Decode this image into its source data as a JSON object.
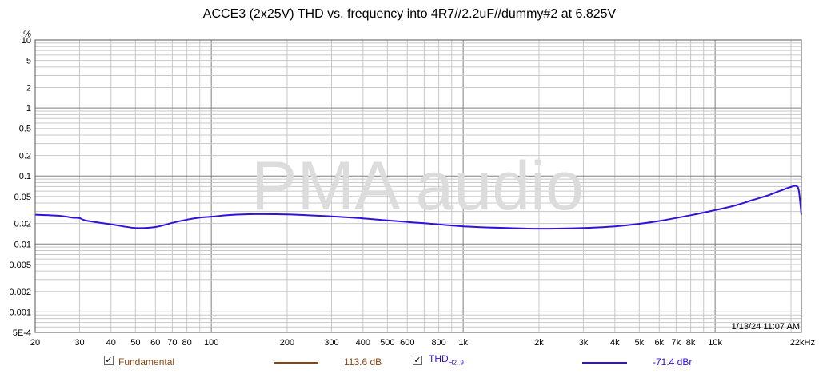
{
  "chart_data": {
    "type": "line",
    "title": "ACCE3 (2x25V) THD vs. frequency into 4R7//2.2uF//dummy#2 at 6.825V",
    "ylabel": "%",
    "xlabel": "",
    "x_scale": "log",
    "y_scale": "log",
    "xlim": [
      20,
      22000
    ],
    "ylim": [
      0.0005,
      10
    ],
    "x_ticks": [
      {
        "v": 20,
        "label": "20"
      },
      {
        "v": 30,
        "label": "30"
      },
      {
        "v": 40,
        "label": "40"
      },
      {
        "v": 50,
        "label": "50"
      },
      {
        "v": 60,
        "label": "60"
      },
      {
        "v": 70,
        "label": "70"
      },
      {
        "v": 80,
        "label": "80"
      },
      {
        "v": 100,
        "label": "100"
      },
      {
        "v": 200,
        "label": "200"
      },
      {
        "v": 300,
        "label": "300"
      },
      {
        "v": 400,
        "label": "400"
      },
      {
        "v": 500,
        "label": "500"
      },
      {
        "v": 600,
        "label": "600"
      },
      {
        "v": 800,
        "label": "800"
      },
      {
        "v": 1000,
        "label": "1k"
      },
      {
        "v": 2000,
        "label": "2k"
      },
      {
        "v": 3000,
        "label": "3k"
      },
      {
        "v": 4000,
        "label": "4k"
      },
      {
        "v": 5000,
        "label": "5k"
      },
      {
        "v": 6000,
        "label": "6k"
      },
      {
        "v": 7000,
        "label": "7k"
      },
      {
        "v": 8000,
        "label": "8k"
      },
      {
        "v": 10000,
        "label": "10k"
      },
      {
        "v": 22000,
        "label": "22kHz"
      }
    ],
    "y_ticks": [
      {
        "v": 10,
        "label": "10"
      },
      {
        "v": 5,
        "label": "5"
      },
      {
        "v": 2,
        "label": "2"
      },
      {
        "v": 1,
        "label": "1"
      },
      {
        "v": 0.5,
        "label": "0.5"
      },
      {
        "v": 0.2,
        "label": "0.2"
      },
      {
        "v": 0.1,
        "label": "0.1"
      },
      {
        "v": 0.05,
        "label": "0.05"
      },
      {
        "v": 0.02,
        "label": "0.02"
      },
      {
        "v": 0.01,
        "label": "0.01"
      },
      {
        "v": 0.005,
        "label": "0.005"
      },
      {
        "v": 0.002,
        "label": "0.002"
      },
      {
        "v": 0.001,
        "label": "0.001"
      },
      {
        "v": 0.0005,
        "label": "5E-4"
      }
    ],
    "series": [
      {
        "name": "THD H2..9",
        "color": "#3311dd",
        "x": [
          20,
          25,
          28,
          30,
          32,
          40,
          50,
          60,
          70,
          80,
          90,
          100,
          120,
          150,
          200,
          300,
          400,
          500,
          700,
          1000,
          1500,
          2000,
          3000,
          4000,
          5000,
          6000,
          8000,
          10000,
          12000,
          14000,
          16000,
          18000,
          20000,
          21000,
          21500,
          22000
        ],
        "y": [
          0.027,
          0.026,
          0.0245,
          0.024,
          0.022,
          0.0195,
          0.0172,
          0.0178,
          0.0205,
          0.0228,
          0.0245,
          0.0252,
          0.0268,
          0.0275,
          0.0272,
          0.0255,
          0.0238,
          0.0222,
          0.0202,
          0.0182,
          0.0172,
          0.0168,
          0.0172,
          0.0182,
          0.0198,
          0.0218,
          0.0265,
          0.0315,
          0.0368,
          0.044,
          0.051,
          0.06,
          0.069,
          0.071,
          0.06,
          0.027
        ]
      }
    ]
  },
  "watermark": "PMA audio",
  "timestamp": "1/13/24 11:07 AM",
  "legend": [
    {
      "checked": "✓",
      "label": "Fundamental",
      "label_color": "#8b4513",
      "line_color": "#8b4513",
      "value": "113.6 dB"
    },
    {
      "checked": "✓",
      "label": "THD",
      "label_sub": "H2..9",
      "label_color": "#3311dd",
      "line_color": "#3311dd",
      "value": "-71.4 dBr"
    }
  ],
  "colors": {
    "grid_major": "#7f7f7f",
    "grid_minor": "#c8c8c8",
    "watermark": "#dcdcdc"
  }
}
